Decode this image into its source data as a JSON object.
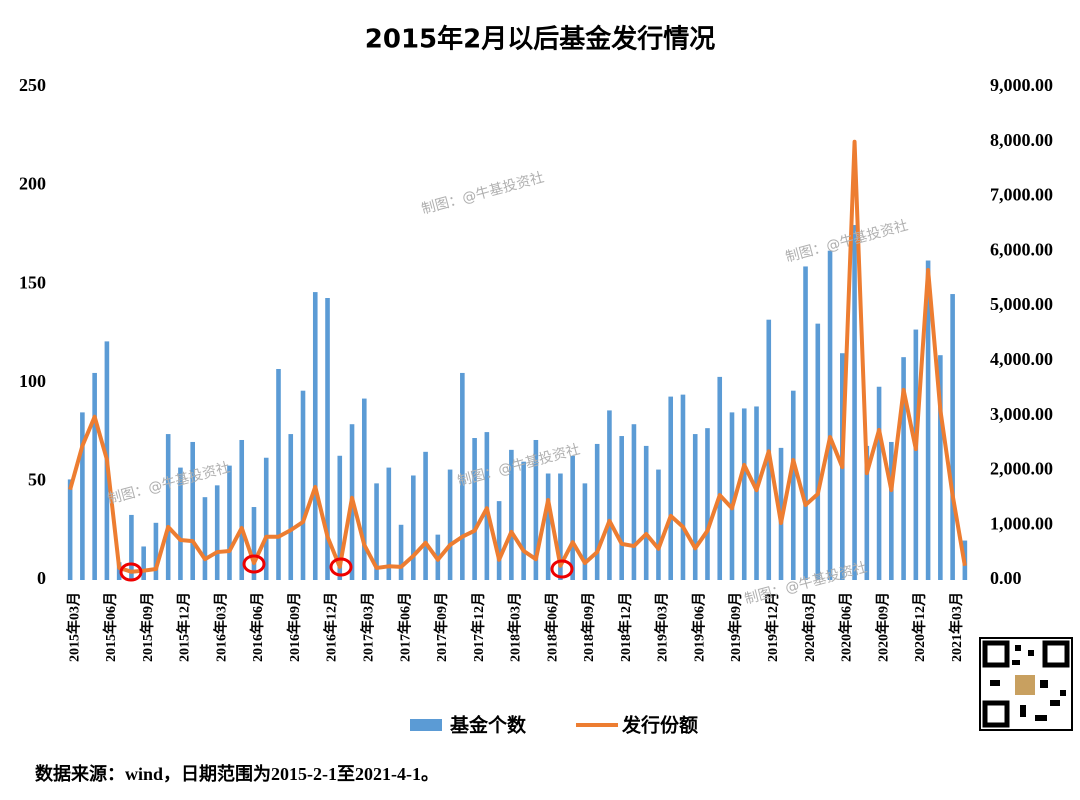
{
  "chart_data": {
    "type": "bar_line",
    "title": "2015年2月以后基金发行情况",
    "source": "数据来源：wind，日期范围为2015-2-1至2021-4-1。",
    "watermark": "制图：@牛基投资社",
    "categories": [
      "2015年03月",
      null,
      null,
      "2015年06月",
      null,
      null,
      "2015年09月",
      null,
      null,
      "2015年12月",
      null,
      null,
      "2016年03月",
      null,
      null,
      "2016年06月",
      null,
      null,
      "2016年09月",
      null,
      null,
      "2016年12月",
      null,
      null,
      "2017年03月",
      null,
      null,
      "2017年06月",
      null,
      null,
      "2017年09月",
      null,
      null,
      "2017年12月",
      null,
      null,
      "2018年03月",
      null,
      null,
      "2018年06月",
      null,
      null,
      "2018年09月",
      null,
      null,
      "2018年12月",
      null,
      null,
      "2019年03月",
      null,
      null,
      "2019年06月",
      null,
      null,
      "2019年09月",
      null,
      null,
      "2019年12月",
      null,
      null,
      "2020年03月",
      null,
      null,
      "2020年06月",
      null,
      null,
      "2020年09月",
      null,
      null,
      "2020年12月",
      null,
      null,
      "2021年03月",
      null
    ],
    "series": [
      {
        "name": "基金个数",
        "type": "bar",
        "color": "#5b9bd5",
        "values": [
          51,
          85,
          105,
          121,
          9,
          33,
          17,
          29,
          74,
          57,
          70,
          42,
          48,
          58,
          71,
          37,
          62,
          107,
          74,
          96,
          146,
          143,
          63,
          79,
          92,
          49,
          57,
          28,
          53,
          65,
          23,
          56,
          105,
          72,
          75,
          40,
          66,
          60,
          71,
          54,
          54,
          63,
          49,
          69,
          86,
          73,
          79,
          68,
          56,
          93,
          94,
          74,
          77,
          103,
          85,
          87,
          88,
          132,
          67,
          96,
          159,
          130,
          167,
          115,
          180,
          68,
          98,
          70,
          113,
          127,
          162,
          114,
          145,
          20
        ]
      },
      {
        "name": "发行份额",
        "type": "line",
        "axis": "y2",
        "color": "#ed7d31",
        "values": [
          1650,
          2450,
          2980,
          2200,
          220,
          150,
          170,
          200,
          970,
          730,
          710,
          380,
          510,
          530,
          950,
          310,
          790,
          790,
          910,
          1060,
          1700,
          790,
          240,
          1500,
          640,
          220,
          250,
          240,
          440,
          680,
          370,
          640,
          790,
          900,
          1310,
          370,
          880,
          530,
          380,
          1460,
          260,
          690,
          310,
          510,
          1080,
          660,
          620,
          840,
          570,
          1170,
          970,
          580,
          900,
          1550,
          1310,
          2100,
          1640,
          2350,
          1040,
          2190,
          1370,
          1570,
          2610,
          2060,
          8000,
          1950,
          2740,
          1640,
          3470,
          2390,
          5660,
          3100,
          1550,
          260
        ]
      }
    ],
    "ylim": [
      0,
      250
    ],
    "yticks": [
      0,
      50,
      100,
      150,
      200,
      250
    ],
    "y2lim": [
      0,
      9000
    ],
    "y2ticks": [
      {
        "value": 0,
        "label": "0.00"
      },
      {
        "value": 1000,
        "label": "1,000.00"
      },
      {
        "value": 2000,
        "label": "2,000.00"
      },
      {
        "value": 3000,
        "label": "3,000.00"
      },
      {
        "value": 4000,
        "label": "4,000.00"
      },
      {
        "value": 5000,
        "label": "5,000.00"
      },
      {
        "value": 6000,
        "label": "6,000.00"
      },
      {
        "value": 7000,
        "label": "7,000.00"
      },
      {
        "value": 8000,
        "label": "8,000.00"
      },
      {
        "value": 9000,
        "label": "9,000.00"
      }
    ],
    "grid": false,
    "legend": "bottom"
  }
}
